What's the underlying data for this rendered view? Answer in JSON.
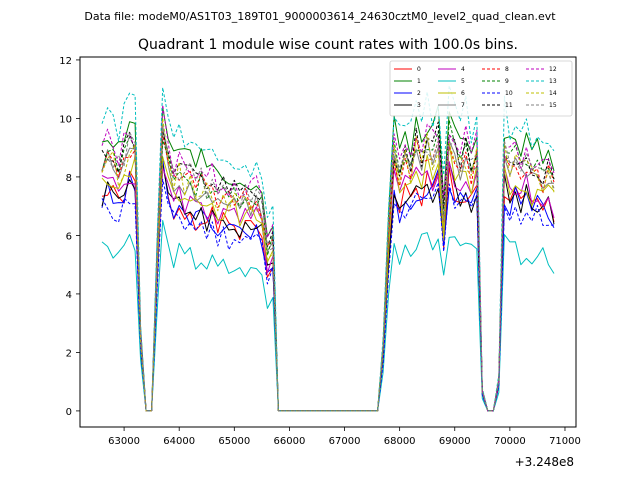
{
  "figure": {
    "suptitle": "Data file: modeM0/AS1T03_189T01_9000003614_24630cztM0_level2_quad_clean.evt",
    "title": "Quadrant 1 module wise count rates with 100.0s bins.",
    "offset_label": "+3.248e8"
  },
  "chart_data": {
    "type": "line",
    "title": "Quadrant 1 module wise count rates with 100.0s bins.",
    "xlabel": "",
    "ylabel": "",
    "x_offset": 324800000,
    "xlim": [
      62200,
      71200
    ],
    "ylim": [
      -0.55,
      12.1
    ],
    "xticks": [
      63000,
      64000,
      65000,
      66000,
      67000,
      68000,
      69000,
      70000,
      71000
    ],
    "yticks": [
      0,
      2,
      4,
      6,
      8,
      10,
      12
    ],
    "legend_location": "upper right",
    "segments": [
      {
        "x_start": 62600,
        "x_end": 63200,
        "step": 100
      },
      {
        "x_start": 63300,
        "x_end": 63400,
        "step": 100
      },
      {
        "x_start": 63500,
        "x_end": 65700,
        "step": 100
      },
      {
        "x_start": 65800,
        "x_end": 67600,
        "step": 100
      },
      {
        "x_start": 67700,
        "x_end": 69400,
        "step": 100
      },
      {
        "x_start": 69500,
        "x_end": 69700,
        "step": 100
      },
      {
        "x_start": 69800,
        "x_end": 70700,
        "step": 100
      }
    ],
    "series": [
      {
        "name": "0",
        "color": "#ff0000",
        "style": "solid",
        "base": 7.3,
        "spread": 0.45,
        "seed": 1
      },
      {
        "name": "1",
        "color": "#008000",
        "style": "solid",
        "base": 9.3,
        "spread": 0.45,
        "seed": 2
      },
      {
        "name": "2",
        "color": "#0000ff",
        "style": "solid",
        "base": 7.2,
        "spread": 0.45,
        "seed": 3
      },
      {
        "name": "3",
        "color": "#000000",
        "style": "solid",
        "base": 7.4,
        "spread": 0.45,
        "seed": 4
      },
      {
        "name": "4",
        "color": "#bf00bf",
        "style": "solid",
        "base": 7.7,
        "spread": 0.45,
        "seed": 5
      },
      {
        "name": "5",
        "color": "#00bfbf",
        "style": "solid",
        "base": 5.6,
        "spread": 0.4,
        "seed": 6
      },
      {
        "name": "6",
        "color": "#bfbf00",
        "style": "solid",
        "base": 7.9,
        "spread": 0.5,
        "seed": 7
      },
      {
        "name": "7",
        "color": "#808080",
        "style": "solid",
        "base": 8.3,
        "spread": 0.45,
        "seed": 8
      },
      {
        "name": "8",
        "color": "#ff0000",
        "style": "dashed",
        "base": 8.4,
        "spread": 0.45,
        "seed": 9
      },
      {
        "name": "9",
        "color": "#008000",
        "style": "dashed",
        "base": 8.6,
        "spread": 0.45,
        "seed": 10
      },
      {
        "name": "10",
        "color": "#0000ff",
        "style": "dashed",
        "base": 6.9,
        "spread": 0.45,
        "seed": 11
      },
      {
        "name": "11",
        "color": "#000000",
        "style": "dashed",
        "base": 8.7,
        "spread": 0.45,
        "seed": 12
      },
      {
        "name": "12",
        "color": "#bf00bf",
        "style": "dashed",
        "base": 9.0,
        "spread": 0.45,
        "seed": 13
      },
      {
        "name": "13",
        "color": "#00bfbf",
        "style": "dashed",
        "base": 9.9,
        "spread": 0.45,
        "seed": 14
      },
      {
        "name": "14",
        "color": "#bfbf00",
        "style": "dashed",
        "base": 8.4,
        "spread": 0.5,
        "seed": 15
      },
      {
        "name": "15",
        "color": "#808080",
        "style": "dashed",
        "base": 8.6,
        "spread": 0.45,
        "seed": 16
      }
    ]
  }
}
